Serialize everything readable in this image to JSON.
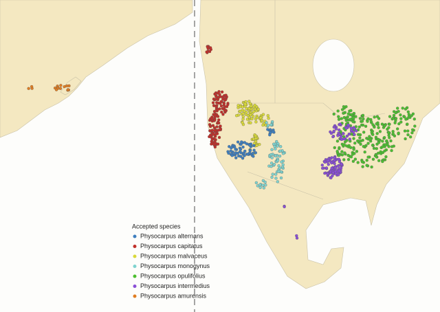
{
  "legend": {
    "title": "Accepted species",
    "items": [
      {
        "label": "Physocarpus alternans",
        "color": "#3f7fbf"
      },
      {
        "label": "Physocarpus capitatus",
        "color": "#c0302a"
      },
      {
        "label": "Physocarpus malvaceus",
        "color": "#d9d93a"
      },
      {
        "label": "Physocarpus monogynus",
        "color": "#7fd3cf"
      },
      {
        "label": "Physocarpus opulifolius",
        "color": "#4cbf30"
      },
      {
        "label": "Physocarpus intermedius",
        "color": "#8a4fd6"
      },
      {
        "label": "Physocarpus amurensis",
        "color": "#e07d22"
      }
    ]
  }
}
